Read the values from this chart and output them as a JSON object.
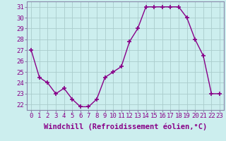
{
  "hours": [
    0,
    1,
    2,
    3,
    4,
    5,
    6,
    7,
    8,
    9,
    10,
    11,
    12,
    13,
    14,
    15,
    16,
    17,
    18,
    19,
    20,
    21,
    22,
    23
  ],
  "values": [
    27.0,
    24.5,
    24.0,
    23.0,
    23.5,
    22.5,
    21.8,
    21.8,
    22.5,
    24.5,
    25.0,
    25.5,
    27.8,
    29.0,
    31.0,
    31.0,
    31.0,
    31.0,
    31.0,
    30.0,
    28.0,
    26.5,
    23.0,
    23.0
  ],
  "line_color": "#880088",
  "marker": "+",
  "marker_size": 4,
  "marker_lw": 1.2,
  "line_width": 1.0,
  "bg_color": "#cceeee",
  "grid_color": "#aacccc",
  "xlabel": "Windchill (Refroidissement éolien,°C)",
  "xlabel_fontsize": 7.5,
  "tick_fontsize": 6.5,
  "ylim": [
    21.5,
    31.5
  ],
  "yticks": [
    22,
    23,
    24,
    25,
    26,
    27,
    28,
    29,
    30,
    31
  ],
  "xlim": [
    -0.5,
    23.5
  ],
  "spine_color": "#8888aa"
}
